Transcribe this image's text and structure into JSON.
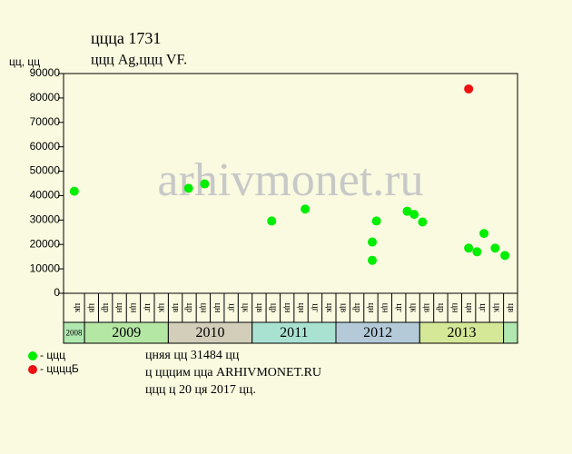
{
  "chart_data": {
    "type": "scatter",
    "title": "ццца 1731",
    "subtitle": "ццц Ag,ццц VF.",
    "y_label": "цц, цц",
    "watermark": "arhivmonet.ru",
    "ylim": [
      0,
      90000
    ],
    "yticks": [
      0,
      10000,
      20000,
      30000,
      40000,
      50000,
      60000,
      70000,
      80000,
      90000
    ],
    "xlim": [
      -1,
      31.5
    ],
    "grid": false,
    "periods": [
      "цк",
      "цв",
      "цр",
      "цн",
      "цн",
      "цг",
      "цк",
      "цв",
      "цр",
      "цн",
      "цн",
      "цг",
      "цк",
      "цв",
      "цр",
      "цн",
      "цн",
      "цг",
      "цк",
      "цв",
      "цр",
      "цн",
      "цн",
      "цг",
      "цк",
      "цв",
      "цр",
      "цн",
      "цн",
      "цг",
      "цк",
      "цв"
    ],
    "years": [
      {
        "label": "2008",
        "color": "#b0e8b0"
      },
      {
        "label": "2009",
        "color": "#b4e6a4"
      },
      {
        "label": "2010",
        "color": "#d2ceba"
      },
      {
        "label": "2011",
        "color": "#aae2d2"
      },
      {
        "label": "2012",
        "color": "#b4cad8"
      },
      {
        "label": "2013",
        "color": "#d4e898"
      }
    ],
    "series": [
      {
        "name": "- ццц",
        "color": "#00ee00",
        "x": [
          -0.23,
          7.95,
          9.1,
          13.9,
          16.3,
          21.1,
          21.1,
          21.4,
          23.6,
          24.1,
          24.7,
          28.0,
          28.6,
          29.1,
          29.9,
          30.6
        ],
        "values": [
          41800,
          43000,
          44800,
          29600,
          34500,
          13500,
          21000,
          29600,
          33600,
          32300,
          29200,
          18500,
          17000,
          24500,
          18500,
          15500
        ]
      },
      {
        "name": "- ццццБ",
        "color": "#ee1111",
        "x": [
          28.0
        ],
        "values": [
          83700
        ]
      }
    ],
    "notes": [
      "цняя цц 31484 цц",
      "ц цццим цца ARHIVMONET.RU",
      "ццц ц 20 ця 2017 цц."
    ]
  }
}
